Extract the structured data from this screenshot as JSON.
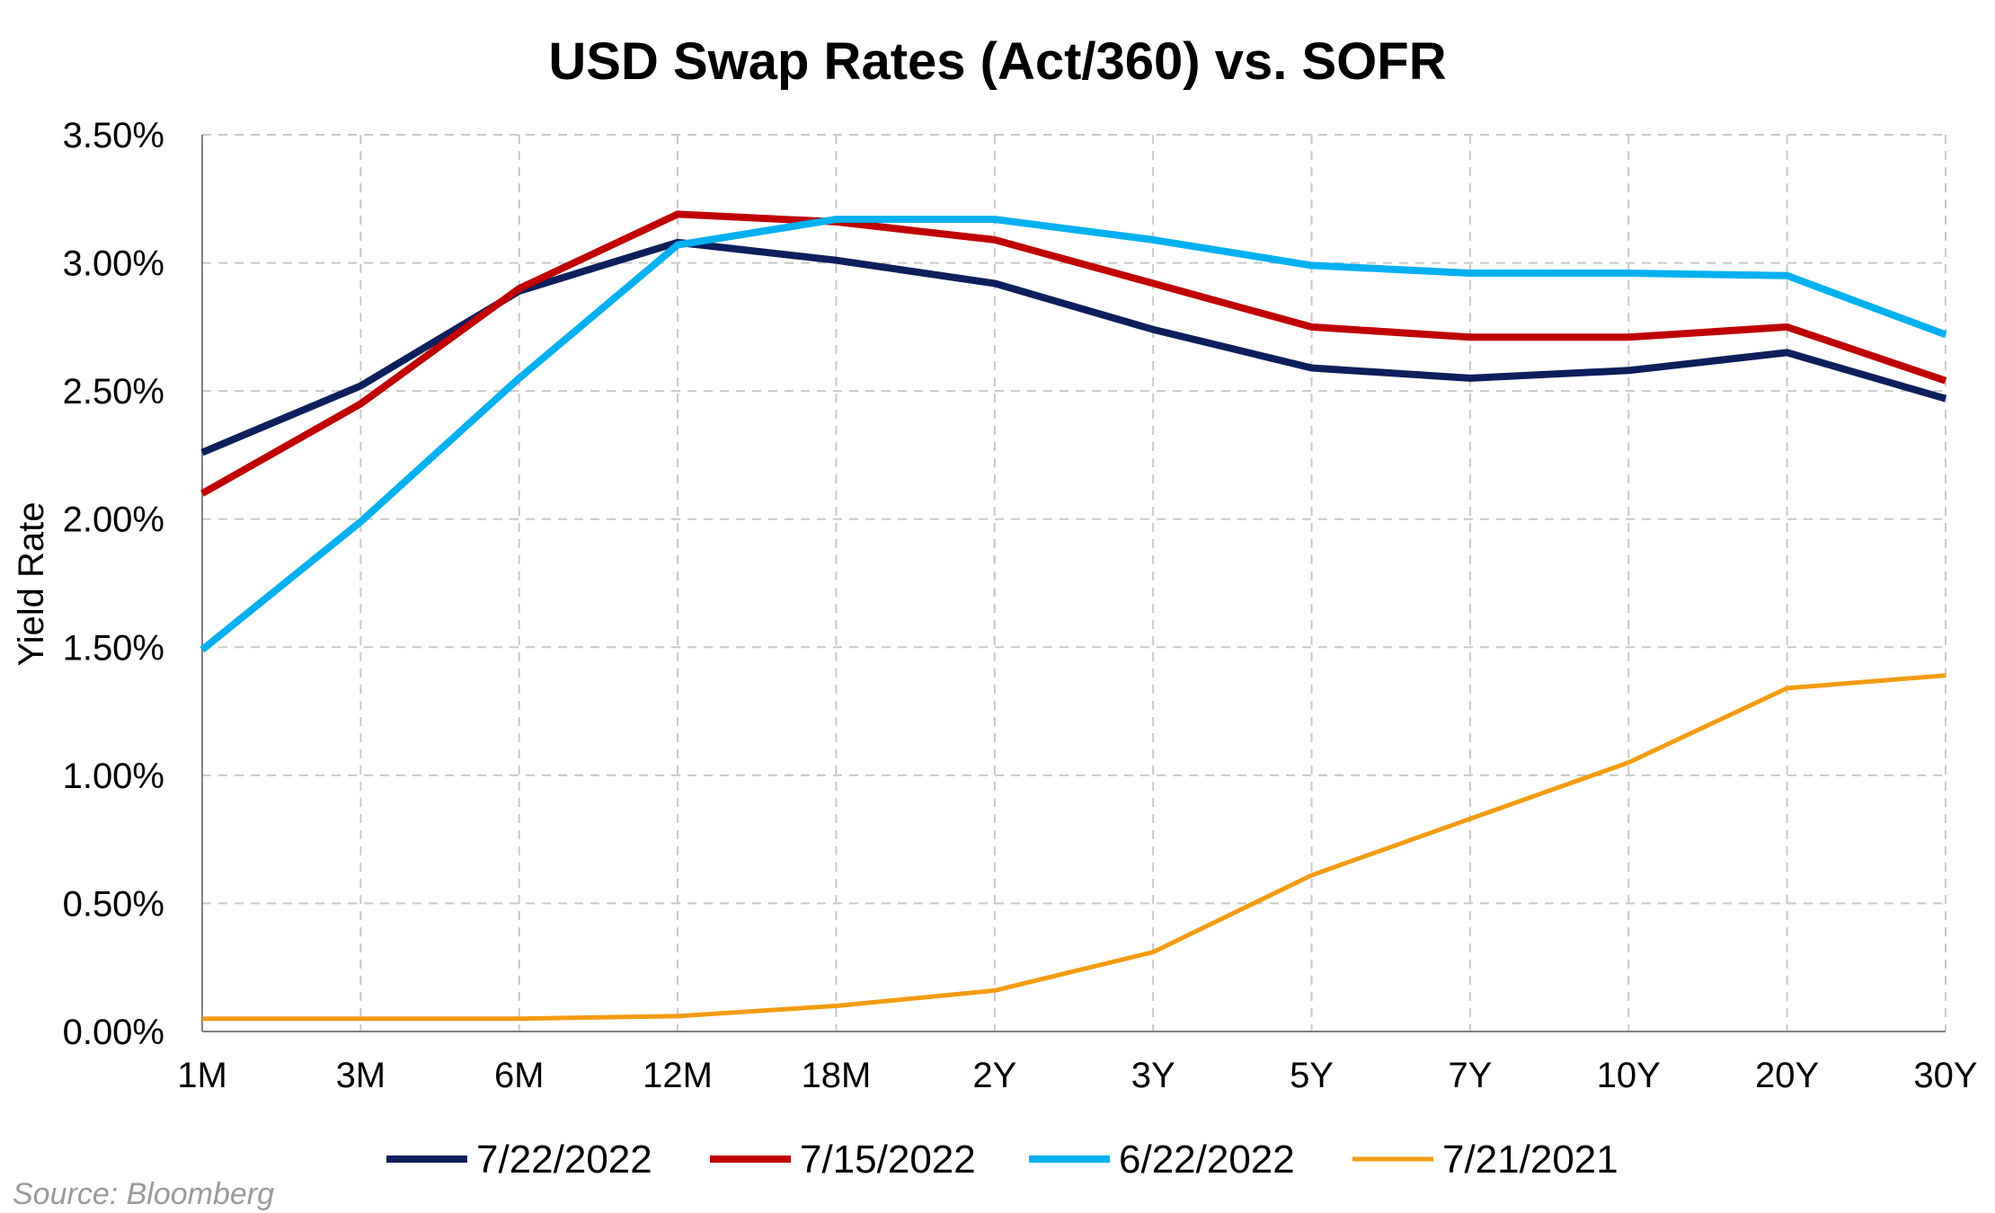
{
  "chart_data": {
    "type": "line",
    "title": "USD Swap Rates (Act/360) vs. SOFR",
    "xlabel": "",
    "ylabel": "Yield Rate",
    "categories": [
      "1M",
      "3M",
      "6M",
      "12M",
      "18M",
      "2Y",
      "3Y",
      "5Y",
      "7Y",
      "10Y",
      "20Y",
      "30Y"
    ],
    "ylim": [
      0,
      3.5
    ],
    "yticks": [
      "0.00%",
      "0.50%",
      "1.00%",
      "1.50%",
      "2.00%",
      "2.50%",
      "3.00%",
      "3.50%"
    ],
    "grid": true,
    "legend_position": "bottom",
    "series": [
      {
        "name": "7/22/2022",
        "color": "#0d1f5c",
        "values": [
          2.26,
          2.52,
          2.89,
          3.08,
          3.01,
          2.92,
          2.74,
          2.59,
          2.55,
          2.58,
          2.65,
          2.47
        ]
      },
      {
        "name": "7/15/2022",
        "color": "#c00000",
        "values": [
          2.1,
          2.45,
          2.9,
          3.19,
          3.16,
          3.09,
          2.92,
          2.75,
          2.71,
          2.71,
          2.75,
          2.54
        ]
      },
      {
        "name": "6/22/2022",
        "color": "#00b0f0",
        "values": [
          1.49,
          1.99,
          2.55,
          3.07,
          3.17,
          3.17,
          3.09,
          2.99,
          2.96,
          2.96,
          2.95,
          2.72
        ]
      },
      {
        "name": "7/21/2021",
        "color": "#f39c12",
        "values": [
          0.05,
          0.05,
          0.05,
          0.06,
          0.1,
          0.16,
          0.31,
          0.61,
          0.83,
          1.05,
          1.34,
          1.39
        ]
      }
    ],
    "source": "Source: Bloomberg"
  }
}
